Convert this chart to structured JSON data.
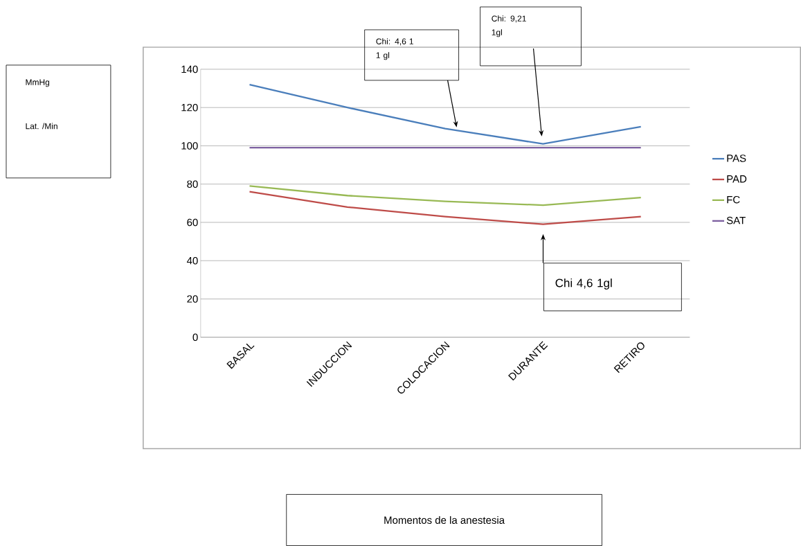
{
  "chart_data": {
    "type": "line",
    "categories": [
      "BASAL",
      "INDUCCION",
      "COLOCACION",
      "DURANTE",
      "RETIRO"
    ],
    "series": [
      {
        "name": "PAS",
        "color": "#4a7ebb",
        "values": [
          132,
          120,
          109,
          101,
          110
        ]
      },
      {
        "name": "PAD",
        "color": "#be4b48",
        "values": [
          76,
          68,
          63,
          59,
          63
        ]
      },
      {
        "name": "FC",
        "color": "#98b954",
        "values": [
          79,
          74,
          71,
          69,
          73
        ]
      },
      {
        "name": "SAT",
        "color": "#7d60a0",
        "values": [
          99,
          99,
          99,
          99,
          99
        ]
      }
    ],
    "ylim": [
      0,
      140
    ],
    "yticks": [
      0,
      20,
      40,
      60,
      80,
      100,
      120,
      140
    ],
    "grid": "y",
    "legend": "right",
    "marker": "none",
    "line_style": "solid",
    "annotations": [
      "MmHg",
      "Lat. /Min",
      "Momentos de la anestesia",
      "Chi: 4,6 1 1 gl",
      "Chi: 9,21 1gl",
      "Chi 4,6 1gl"
    ]
  }
}
